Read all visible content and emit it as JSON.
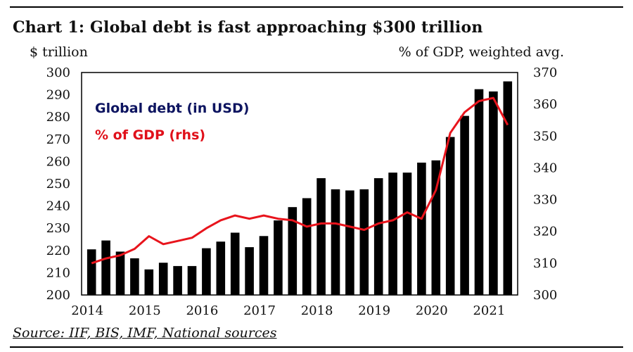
{
  "title": "Chart 1: Global debt is fast approaching $300 trillion",
  "source": "Source: IIF, BIS, IMF, National sources",
  "colors": {
    "bars": "#000000",
    "line": "#e8141c",
    "legend_debt": "#0d1460",
    "legend_gdp": "#e0101a"
  },
  "chart_data": {
    "type": "bar",
    "title": "Chart 1: Global debt is fast approaching $300 trillion",
    "ylabel_left": "$ trillion",
    "ylabel_right": "% of GDP, weighted avg.",
    "ylim_left": [
      200,
      300
    ],
    "ylim_right": [
      300,
      370
    ],
    "yticks_left": [
      200,
      210,
      220,
      230,
      240,
      250,
      260,
      270,
      280,
      290,
      300
    ],
    "yticks_right": [
      300,
      310,
      320,
      330,
      340,
      350,
      360,
      370
    ],
    "xticks": [
      "2014",
      "2015",
      "2016",
      "2017",
      "2018",
      "2019",
      "2020",
      "2021"
    ],
    "grid": false,
    "legend_position": "top-left",
    "categories": [
      "2014Q1",
      "2014Q2",
      "2014Q3",
      "2014Q4",
      "2015Q1",
      "2015Q2",
      "2015Q3",
      "2015Q4",
      "2016Q1",
      "2016Q2",
      "2016Q3",
      "2016Q4",
      "2017Q1",
      "2017Q2",
      "2017Q3",
      "2017Q4",
      "2018Q1",
      "2018Q2",
      "2018Q3",
      "2018Q4",
      "2019Q1",
      "2019Q2",
      "2019Q3",
      "2019Q4",
      "2020Q1",
      "2020Q2",
      "2020Q3",
      "2020Q4",
      "2021Q1",
      "2021Q2"
    ],
    "series": [
      {
        "name": "Global debt (in USD)",
        "type": "bar",
        "axis": "left",
        "values": [
          220.5,
          224.5,
          219.5,
          216.5,
          211.5,
          214.5,
          213,
          213,
          221,
          224,
          228,
          221.5,
          226.5,
          233.5,
          239.5,
          243.5,
          252.5,
          247.5,
          247,
          247.5,
          252.5,
          255,
          255,
          259.5,
          260.5,
          271,
          280.5,
          292.5,
          291.5,
          296
        ]
      },
      {
        "name": "% of GDP (rhs)",
        "type": "line",
        "axis": "right",
        "values": [
          310,
          311.5,
          312.5,
          314.5,
          318.5,
          316,
          317,
          318,
          321,
          323.5,
          325,
          324,
          325,
          324,
          323.5,
          321.5,
          322.5,
          322.5,
          321.5,
          320.5,
          322.5,
          323.5,
          326,
          324,
          333,
          351,
          357.5,
          361,
          362,
          353.5
        ]
      }
    ]
  }
}
